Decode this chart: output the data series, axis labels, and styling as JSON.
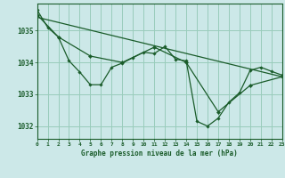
{
  "background_color": "#cce8e8",
  "plot_bg_color": "#cce8e8",
  "grid_color": "#99ccbb",
  "line_color": "#1a5c2a",
  "marker_color": "#1a5c2a",
  "xlabel": "Graphe pression niveau de la mer (hPa)",
  "ylim": [
    1031.6,
    1035.85
  ],
  "yticks": [
    1032,
    1033,
    1034,
    1035
  ],
  "xlim": [
    0,
    23
  ],
  "xticks": [
    0,
    1,
    2,
    3,
    4,
    5,
    6,
    7,
    8,
    9,
    10,
    11,
    12,
    13,
    14,
    15,
    16,
    17,
    18,
    19,
    20,
    21,
    22,
    23
  ],
  "series1_x": [
    0,
    1,
    2,
    3,
    4,
    5,
    6,
    7,
    8,
    9,
    10,
    11,
    12,
    13,
    14,
    15,
    16,
    17,
    18,
    19,
    20,
    21,
    22,
    23
  ],
  "series1_y": [
    1035.65,
    1035.1,
    1034.8,
    1034.05,
    1033.7,
    1033.3,
    1033.3,
    1033.85,
    1033.98,
    1034.15,
    1034.32,
    1034.28,
    1034.5,
    1034.1,
    1034.05,
    1032.15,
    1032.0,
    1032.25,
    1032.75,
    1033.05,
    1033.75,
    1033.85,
    1033.72,
    1033.6
  ],
  "series2_x": [
    0,
    2,
    5,
    8,
    11,
    14,
    17,
    20,
    23
  ],
  "series2_y": [
    1035.5,
    1034.8,
    1034.2,
    1034.0,
    1034.48,
    1034.0,
    1032.45,
    1033.28,
    1033.55
  ],
  "series3_x": [
    0,
    23
  ],
  "series3_y": [
    1035.42,
    1033.55
  ]
}
